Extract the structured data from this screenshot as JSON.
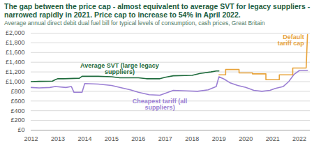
{
  "chart_data": {
    "type": "line",
    "title": "The gap between the price cap - almost equivalent to average SVT for legacy suppliers - narrowed rapidly in 2021. Price cap to increase to 54% in April 2022.",
    "subtitle": "Average annual direct debit dual fuel bill for typical levels of consumption, cash prices, Great Britain",
    "xlim": [
      2012,
      2022.4
    ],
    "xticks": [
      2012,
      2013,
      2014,
      2015,
      2016,
      2017,
      2018,
      2019,
      2020,
      2021,
      2022
    ],
    "ylim": [
      0,
      2000
    ],
    "yticks": [
      {
        "value": 0,
        "label": "£0"
      },
      {
        "value": 200,
        "label": "£200"
      },
      {
        "value": 400,
        "label": "£400"
      },
      {
        "value": 600,
        "label": "£600"
      },
      {
        "value": 800,
        "label": "£800"
      },
      {
        "value": 1000,
        "label": "£1,000"
      },
      {
        "value": 1200,
        "label": "£1,200"
      },
      {
        "value": 1400,
        "label": "£1,400"
      },
      {
        "value": 1600,
        "label": "£1,600"
      },
      {
        "value": 1800,
        "label": "£1,800"
      },
      {
        "value": 2000,
        "label": "£2,000"
      }
    ],
    "grid": true,
    "series": [
      {
        "name": "Average SVT (large legacy suppliers)",
        "color": "#1e6b3c",
        "x": [
          2012.0,
          2012.3,
          2012.8,
          2012.9,
          2013.0,
          2013.2,
          2013.8,
          2013.9,
          2014.5,
          2015.0,
          2015.3,
          2016.0,
          2016.3,
          2016.8,
          2017.0,
          2017.3,
          2018.0,
          2018.3,
          2018.7,
          2018.9,
          2019.0
        ],
        "values": [
          1000,
          1005,
          1010,
          1040,
          1060,
          1060,
          1070,
          1110,
          1110,
          1100,
          1080,
          1080,
          1060,
          1060,
          1090,
          1120,
          1130,
          1170,
          1200,
          1220,
          1220
        ]
      },
      {
        "name": "Cheapest tariff (all suppliers)",
        "color": "#9b7fd4",
        "x": [
          2012.0,
          2012.3,
          2012.7,
          2012.9,
          2013.3,
          2013.5,
          2013.6,
          2013.9,
          2014.0,
          2014.5,
          2015.0,
          2015.3,
          2015.7,
          2016.0,
          2016.4,
          2016.8,
          2017.0,
          2017.3,
          2017.8,
          2018.2,
          2018.6,
          2018.9,
          2019.0,
          2019.2,
          2019.4,
          2019.7,
          2020.0,
          2020.3,
          2020.6,
          2020.9,
          2021.1,
          2021.4,
          2021.6,
          2021.8,
          2022.0,
          2022.3
        ],
        "values": [
          880,
          870,
          880,
          900,
          880,
          900,
          780,
          780,
          960,
          950,
          920,
          880,
          830,
          780,
          730,
          720,
          760,
          820,
          810,
          800,
          830,
          900,
          1100,
          1050,
          980,
          920,
          880,
          820,
          800,
          820,
          860,
          900,
          1000,
          1150,
          1230,
          1230
        ]
      },
      {
        "name": "Default tariff cap",
        "color": "#e8a33a",
        "x": [
          2019.0,
          2019.25,
          2019.25,
          2019.75,
          2019.75,
          2020.25,
          2020.25,
          2020.75,
          2020.75,
          2021.25,
          2021.25,
          2021.75,
          2021.75,
          2022.25,
          2022.3
        ],
        "values": [
          1140,
          1140,
          1250,
          1250,
          1180,
          1180,
          1160,
          1160,
          1040,
          1040,
          1140,
          1140,
          1280,
          1280,
          1970
        ]
      }
    ]
  }
}
